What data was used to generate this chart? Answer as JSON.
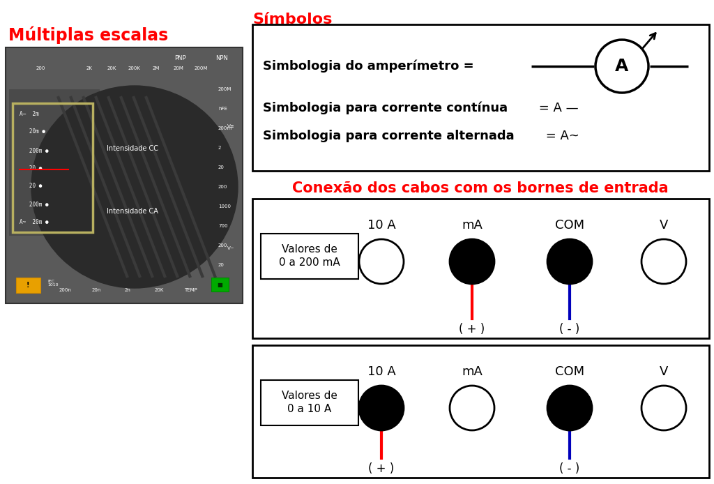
{
  "bg_color": "#ffffff",
  "title_simbolos": "Símbolos",
  "title_conexao": "Conexão dos cabos com os bornes de entrada",
  "title_multiplas": "Múltiplas escalas",
  "red_color": "#ff0000",
  "blue_color": "#0000bb",
  "black_color": "#000000",
  "line1_bold": "Simbologia do amperímetro = ",
  "line2_bold": "Simbologia para corrente contínua",
  "line2_normal": " = A —",
  "line3_bold": "Simbologia para corrente alternada",
  "line3_normal": " = A~",
  "label_200mA": "Valores de\n0 a 200 mA",
  "label_10A": "Valores de\n0 a 10 A",
  "port_labels": [
    "10 A",
    "mA",
    "COM",
    "V"
  ],
  "plus_label": "( + )",
  "minus_label": "( - )",
  "img_bg": "#5a5a5a",
  "img_border": "#444444",
  "knob_color": "#2a2a2a",
  "knob_highlight": "#3d3d3d",
  "face_color": "#4a4a4a",
  "sel_box_color": "#b8b060",
  "warn_color": "#e8a000"
}
